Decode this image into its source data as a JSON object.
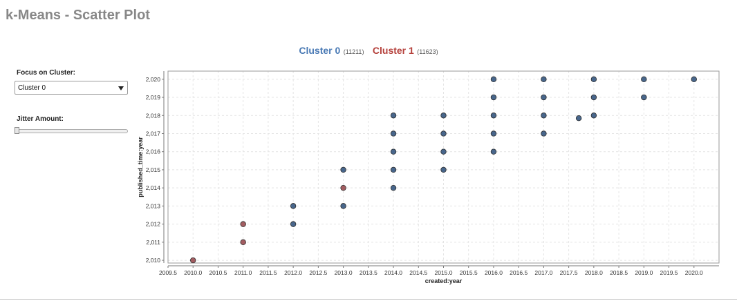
{
  "page": {
    "title": "k-Means - Scatter Plot"
  },
  "legend": [
    {
      "name": "Cluster 0",
      "count": "(11211)",
      "color": "#4a7ab5"
    },
    {
      "name": "Cluster 1",
      "count": "(11623)",
      "color": "#b5413c"
    }
  ],
  "controls": {
    "focus_label": "Focus on Cluster:",
    "focus_value": "Cluster 0",
    "jitter_label": "Jitter Amount:",
    "jitter_value": 0
  },
  "chart_data": {
    "type": "scatter",
    "title": "",
    "xlabel": "created:year",
    "ylabel": "published_time:year",
    "xlim": [
      2009.5,
      2020.5
    ],
    "ylim": [
      2009.85,
      2020.45
    ],
    "x_ticks": [
      "2009.5",
      "2010.0",
      "2010.5",
      "2011.0",
      "2011.5",
      "2012.0",
      "2012.5",
      "2013.0",
      "2013.5",
      "2014.0",
      "2014.5",
      "2015.0",
      "2015.5",
      "2016.0",
      "2016.5",
      "2017.0",
      "2017.5",
      "2018.0",
      "2018.5",
      "2019.0",
      "2019.5",
      "2020.0"
    ],
    "y_ticks": [
      "2,010",
      "2,011",
      "2,012",
      "2,013",
      "2,014",
      "2,015",
      "2,016",
      "2,017",
      "2,018",
      "2,019",
      "2,020"
    ],
    "grid": true,
    "series": [
      {
        "name": "Cluster 0",
        "color": "#3f5f86",
        "points": [
          [
            2012,
            2013
          ],
          [
            2012,
            2012
          ],
          [
            2013,
            2015
          ],
          [
            2013,
            2013
          ],
          [
            2014,
            2018
          ],
          [
            2014,
            2017
          ],
          [
            2014,
            2016
          ],
          [
            2014,
            2015
          ],
          [
            2014,
            2014
          ],
          [
            2015,
            2018
          ],
          [
            2015,
            2017
          ],
          [
            2015,
            2016
          ],
          [
            2015,
            2015
          ],
          [
            2016,
            2020
          ],
          [
            2016,
            2019
          ],
          [
            2016,
            2018
          ],
          [
            2016,
            2017
          ],
          [
            2016,
            2016
          ],
          [
            2017,
            2020
          ],
          [
            2017,
            2019
          ],
          [
            2017,
            2018
          ],
          [
            2017,
            2017
          ],
          [
            2017.7,
            2017.85
          ],
          [
            2018,
            2020
          ],
          [
            2018,
            2019
          ],
          [
            2018,
            2018
          ],
          [
            2019,
            2020
          ],
          [
            2019,
            2019
          ],
          [
            2020,
            2020
          ]
        ]
      },
      {
        "name": "Cluster 1",
        "color": "#9e5458",
        "points": [
          [
            2010,
            2010
          ],
          [
            2011,
            2012
          ],
          [
            2011,
            2011
          ],
          [
            2013,
            2014
          ]
        ]
      }
    ]
  }
}
